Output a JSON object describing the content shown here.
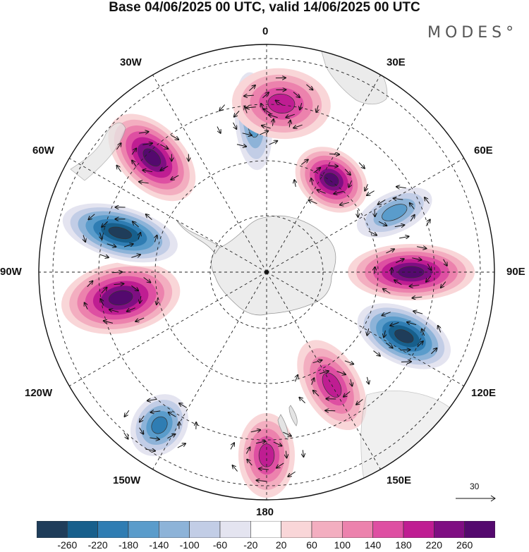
{
  "title": "Base 04/06/2025 00 UTC, valid 14/06/2025 00 UTC",
  "brand": "MODES°",
  "longitude_labels": {
    "top": "0",
    "bottom": "180",
    "left": "90W",
    "right": "90E",
    "nw1": "30W",
    "nw2": "60W",
    "ne1": "30E",
    "ne2": "60E",
    "sw1": "120W",
    "sw2": "150W",
    "se1": "120E",
    "se2": "150E"
  },
  "reference_vector": "30",
  "colorbar": {
    "labels": [
      "-260",
      "-220",
      "-180",
      "-140",
      "-100",
      "-60",
      "-20",
      "20",
      "60",
      "100",
      "140",
      "180",
      "220",
      "260"
    ],
    "colors": [
      "#1f3d5a",
      "#175f8c",
      "#2f7db3",
      "#5a9ccb",
      "#8db3d8",
      "#c2cde6",
      "#e4e4f0",
      "#ffffff",
      "#f9d6d8",
      "#f3aec0",
      "#ec82ad",
      "#de4fa2",
      "#bf1d92",
      "#7f0e82",
      "#54096e"
    ]
  },
  "map": {
    "projection": "south polar stereographic",
    "field_units": "geopotential height anomaly",
    "anomalies": [
      {
        "sign": "positive",
        "lon": "45W",
        "value": 220
      },
      {
        "sign": "negative",
        "lon": "5W",
        "value": -140
      },
      {
        "sign": "positive",
        "lon": "5E",
        "value": 140
      },
      {
        "sign": "positive",
        "lon": "35E",
        "value": 220
      },
      {
        "sign": "negative",
        "lon": "65E",
        "value": -140
      },
      {
        "sign": "positive",
        "lon": "90E",
        "value": 220
      },
      {
        "sign": "negative",
        "lon": "115E",
        "value": -260
      },
      {
        "sign": "positive",
        "lon": "150E",
        "value": 140
      },
      {
        "sign": "positive",
        "lon": "180",
        "value": 140
      },
      {
        "sign": "negative",
        "lon": "145W",
        "value": -180
      },
      {
        "sign": "positive",
        "lon": "100W",
        "value": 220
      },
      {
        "sign": "negative",
        "lon": "75W",
        "value": -260
      }
    ]
  }
}
